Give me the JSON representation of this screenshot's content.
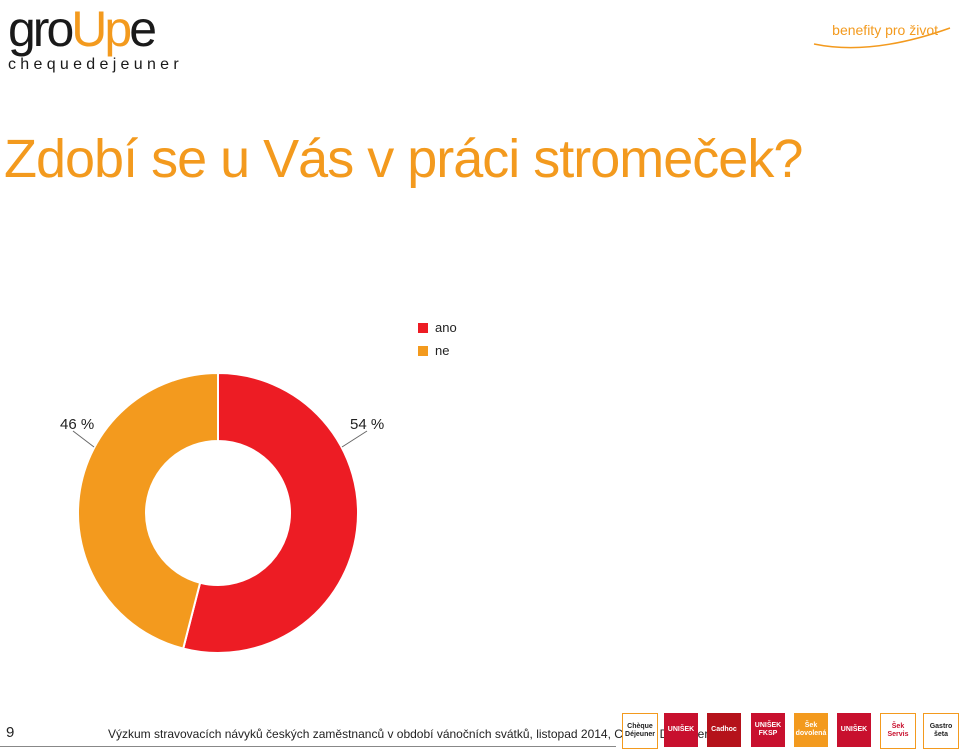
{
  "header": {
    "logo_text_a": "gro",
    "logo_text_b": "Up",
    "logo_text_c": "e",
    "logo_sub": "chequedejeuner",
    "tagline": "benefity pro život"
  },
  "title": "Zdobí se u Vás v práci stromeček?",
  "chart_data": {
    "type": "pie",
    "style": "donut",
    "title": "",
    "series": [
      {
        "name": "ano",
        "value": 54,
        "label": "54 %",
        "color": "#ed1c24"
      },
      {
        "name": "ne",
        "value": 46,
        "label": "46 %",
        "color": "#f39a1e"
      }
    ],
    "legend_position": "top-center"
  },
  "footer": {
    "page_number": "9",
    "source": "Výzkum stravovacích návyků českých zaměstnanců v období vánočních svátků, listopad 2014, Chèque Déjeuner"
  },
  "brands": [
    {
      "label": "Chèque Déjeuner",
      "bg": "#ffffff",
      "fg": "#222222"
    },
    {
      "label": "UNIŠEK",
      "bg": "#c8102e",
      "fg": "#ffffff"
    },
    {
      "label": "Cadhoc",
      "bg": "#b5121b",
      "fg": "#ffffff"
    },
    {
      "label": "UNIŠEK FKSP",
      "bg": "#c8102e",
      "fg": "#ffffff"
    },
    {
      "label": "Šek dovolená",
      "bg": "#f39a1e",
      "fg": "#ffffff"
    },
    {
      "label": "UNIŠEK",
      "bg": "#c8102e",
      "fg": "#ffffff"
    },
    {
      "label": "Šek Servis",
      "bg": "#ffffff",
      "fg": "#c8102e"
    },
    {
      "label": "Gastro šeta",
      "bg": "#ffffff",
      "fg": "#222222"
    }
  ],
  "brand_positions_note": ""
}
